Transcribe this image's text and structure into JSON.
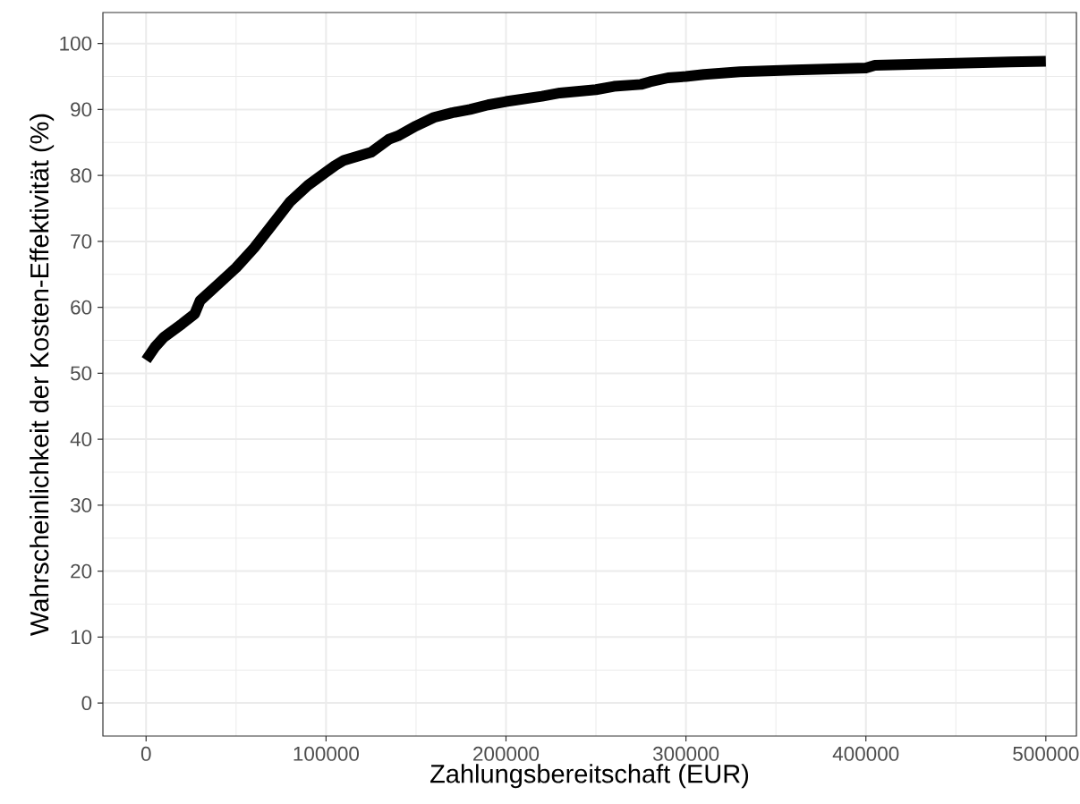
{
  "chart_data": {
    "type": "line",
    "xlabel": "Zahlungsbereitschaft (EUR)",
    "ylabel": "Wahrscheinlichkeit der Kosten-Effektivität (%)",
    "x": [
      0,
      5000,
      10000,
      20000,
      27000,
      30000,
      40000,
      50000,
      60000,
      70000,
      80000,
      90000,
      100000,
      105000,
      110000,
      125000,
      135000,
      140000,
      150000,
      160000,
      170000,
      180000,
      190000,
      200000,
      220000,
      230000,
      250000,
      260000,
      275000,
      280000,
      290000,
      300000,
      310000,
      330000,
      360000,
      400000,
      405000,
      450000,
      480000,
      500000
    ],
    "series": [
      {
        "color": "#000000",
        "values": [
          52,
          54,
          55.5,
          57.5,
          59,
          61,
          63.5,
          66,
          69,
          72.5,
          76,
          78.5,
          80.5,
          81.5,
          82.3,
          83.5,
          85.5,
          86,
          87.5,
          88.8,
          89.5,
          90,
          90.7,
          91.2,
          92,
          92.5,
          93,
          93.5,
          93.8,
          94.2,
          94.8,
          95,
          95.3,
          95.7,
          96,
          96.3,
          96.7,
          97,
          97.2,
          97.3
        ]
      }
    ],
    "xlim": [
      -24000,
      517000
    ],
    "ylim": [
      -5,
      104.7
    ],
    "xticks": [
      0,
      100000,
      200000,
      300000,
      400000,
      500000
    ],
    "yticks": [
      0,
      10,
      20,
      30,
      40,
      50,
      60,
      70,
      80,
      90,
      100
    ],
    "grid": true,
    "marker": "none",
    "line_style": "solid",
    "legend": false
  }
}
